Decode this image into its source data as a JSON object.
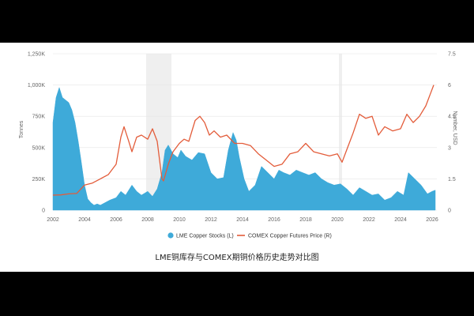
{
  "caption": "LME铜库存与COMEX期铜价格历史走势对比图",
  "colors": {
    "stocks": "#3eaad9",
    "price": "#e35c3a",
    "recession": "#efefef",
    "grid": "#e6e6e6"
  },
  "chart_data": {
    "type": "area",
    "title": "",
    "xlabel": "",
    "ylabel_left": "Tonnes",
    "ylabel_right": "Number, USD",
    "x_ticks": [
      "2002",
      "2004",
      "2006",
      "2008",
      "2010",
      "2012",
      "2014",
      "2016",
      "2018",
      "2020",
      "2022",
      "2024",
      "2026"
    ],
    "y_left_ticks": [
      "0",
      "250K",
      "500K",
      "750K",
      "1,000K",
      "1,250K"
    ],
    "y_right_ticks": [
      "0",
      "1.5",
      "3",
      "4.5",
      "6",
      "7.5"
    ],
    "y_left_lim": [
      0,
      1250000
    ],
    "y_right_lim": [
      0,
      7.5
    ],
    "x_lim": [
      2002,
      2026.3
    ],
    "grid": true,
    "legend_position": "bottom-center",
    "shaded_periods": [
      [
        2007.9,
        2009.5
      ],
      [
        2020.1,
        2020.3
      ]
    ],
    "series": [
      {
        "name": "LME Copper Stocks (L)",
        "axis": "left",
        "kind": "area",
        "x": [
          2002.0,
          2002.2,
          2002.4,
          2002.6,
          2002.8,
          2003.0,
          2003.2,
          2003.4,
          2003.6,
          2003.8,
          2004.0,
          2004.2,
          2004.4,
          2004.6,
          2004.8,
          2005.0,
          2005.3,
          2005.6,
          2006.0,
          2006.3,
          2006.6,
          2007.0,
          2007.3,
          2007.6,
          2008.0,
          2008.3,
          2008.6,
          2008.9,
          2009.1,
          2009.3,
          2009.6,
          2009.9,
          2010.1,
          2010.4,
          2010.8,
          2011.2,
          2011.6,
          2012.0,
          2012.4,
          2012.8,
          2013.1,
          2013.4,
          2013.6,
          2013.8,
          2014.1,
          2014.4,
          2014.8,
          2015.2,
          2015.6,
          2016.0,
          2016.3,
          2016.6,
          2017.0,
          2017.4,
          2017.8,
          2018.2,
          2018.6,
          2019.0,
          2019.4,
          2019.8,
          2020.2,
          2020.6,
          2021.0,
          2021.4,
          2021.8,
          2022.2,
          2022.6,
          2023.0,
          2023.4,
          2023.8,
          2024.2,
          2024.5,
          2024.9,
          2025.3,
          2025.7,
          2026.0,
          2026.2
        ],
        "values": [
          700000,
          900000,
          980000,
          900000,
          880000,
          860000,
          800000,
          700000,
          550000,
          380000,
          200000,
          90000,
          60000,
          40000,
          50000,
          40000,
          60000,
          80000,
          100000,
          150000,
          120000,
          200000,
          150000,
          120000,
          150000,
          110000,
          170000,
          300000,
          480000,
          520000,
          450000,
          420000,
          480000,
          430000,
          400000,
          460000,
          450000,
          300000,
          250000,
          260000,
          480000,
          620000,
          560000,
          420000,
          250000,
          150000,
          200000,
          350000,
          300000,
          250000,
          320000,
          300000,
          280000,
          320000,
          300000,
          280000,
          300000,
          250000,
          220000,
          200000,
          210000,
          170000,
          120000,
          180000,
          150000,
          120000,
          130000,
          80000,
          100000,
          150000,
          120000,
          300000,
          250000,
          200000,
          130000,
          150000,
          160000
        ]
      },
      {
        "name": "COMEX Copper Futures Price (R)",
        "axis": "right",
        "kind": "line",
        "x": [
          2002.0,
          2002.5,
          2003.0,
          2003.5,
          2004.0,
          2004.5,
          2005.0,
          2005.5,
          2006.0,
          2006.3,
          2006.5,
          2006.8,
          2007.0,
          2007.3,
          2007.6,
          2008.0,
          2008.3,
          2008.6,
          2008.9,
          2009.0,
          2009.3,
          2009.6,
          2010.0,
          2010.3,
          2010.6,
          2011.0,
          2011.3,
          2011.6,
          2011.9,
          2012.2,
          2012.6,
          2013.0,
          2013.5,
          2014.0,
          2014.5,
          2015.0,
          2015.5,
          2016.0,
          2016.5,
          2017.0,
          2017.5,
          2018.0,
          2018.5,
          2019.0,
          2019.5,
          2020.0,
          2020.3,
          2020.6,
          2021.0,
          2021.4,
          2021.8,
          2022.2,
          2022.6,
          2023.0,
          2023.5,
          2024.0,
          2024.4,
          2024.8,
          2025.2,
          2025.6,
          2025.9,
          2026.1
        ],
        "values": [
          0.72,
          0.73,
          0.78,
          0.8,
          1.2,
          1.3,
          1.5,
          1.7,
          2.2,
          3.5,
          4.0,
          3.3,
          2.8,
          3.5,
          3.6,
          3.4,
          3.9,
          3.3,
          1.5,
          1.4,
          2.2,
          2.8,
          3.2,
          3.4,
          3.3,
          4.3,
          4.5,
          4.2,
          3.6,
          3.8,
          3.5,
          3.6,
          3.2,
          3.2,
          3.1,
          2.7,
          2.4,
          2.1,
          2.2,
          2.7,
          2.8,
          3.2,
          2.8,
          2.7,
          2.6,
          2.7,
          2.3,
          2.9,
          3.7,
          4.6,
          4.4,
          4.5,
          3.6,
          4.0,
          3.8,
          3.9,
          4.6,
          4.2,
          4.5,
          5.0,
          5.6,
          6.0
        ]
      }
    ]
  }
}
